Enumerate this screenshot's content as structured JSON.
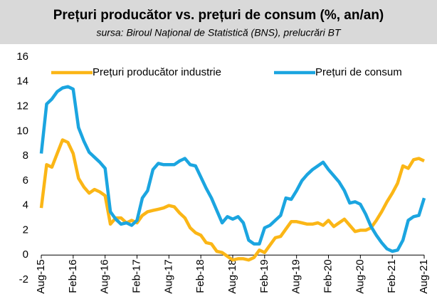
{
  "chart_data": {
    "type": "line",
    "title": "Prețuri producător vs. prețuri de consum (%, an/an)",
    "subtitle": "sursa: Biroul Național de Statistică (BNS), prelucrări BT",
    "categories": [
      "Aug-15",
      null,
      null,
      null,
      null,
      null,
      "Feb-16",
      null,
      null,
      null,
      null,
      null,
      "Aug-16",
      null,
      null,
      null,
      null,
      null,
      "Feb-17",
      null,
      null,
      null,
      null,
      null,
      "Aug-17",
      null,
      null,
      null,
      null,
      null,
      "Feb-18",
      null,
      null,
      null,
      null,
      null,
      "Aug-18",
      null,
      null,
      null,
      null,
      null,
      "Feb-19",
      null,
      null,
      null,
      null,
      null,
      "Aug-19",
      null,
      null,
      null,
      null,
      null,
      "Feb-20",
      null,
      null,
      null,
      null,
      null,
      "Aug-20",
      null,
      null,
      null,
      null,
      null,
      "Feb-21",
      null,
      null,
      null,
      null,
      null,
      "Aug-21"
    ],
    "series": [
      {
        "name": "Prețuri producător industrie",
        "color": "#fbb616",
        "values": [
          3.8,
          7.3,
          7.1,
          8.2,
          9.3,
          9.1,
          8.2,
          6.2,
          5.5,
          5.0,
          5.3,
          5.1,
          4.8,
          2.5,
          3.0,
          3.0,
          2.6,
          2.8,
          2.6,
          3.2,
          3.5,
          3.6,
          3.7,
          3.8,
          4.0,
          3.9,
          3.4,
          3.0,
          2.2,
          1.8,
          1.6,
          1.0,
          0.9,
          0.3,
          0.2,
          -0.1,
          -0.4,
          -0.3,
          -0.3,
          -0.4,
          -0.2,
          0.4,
          0.2,
          0.8,
          1.4,
          1.5,
          2.1,
          2.7,
          2.7,
          2.6,
          2.5,
          2.5,
          2.6,
          2.4,
          2.8,
          2.3,
          2.6,
          2.9,
          2.4,
          1.9,
          2.0,
          2.0,
          2.2,
          2.8,
          3.5,
          4.3,
          5.0,
          5.8,
          7.2,
          7.0,
          7.7,
          7.8,
          7.6
        ]
      },
      {
        "name": "Prețuri de consum",
        "color": "#1ba5e0",
        "values": [
          8.2,
          12.2,
          12.6,
          13.2,
          13.5,
          13.6,
          13.4,
          10.3,
          9.2,
          8.3,
          7.9,
          7.5,
          7.0,
          3.5,
          2.9,
          2.5,
          2.6,
          2.4,
          2.8,
          4.6,
          5.2,
          6.9,
          7.4,
          7.3,
          7.3,
          7.3,
          7.6,
          7.8,
          7.3,
          7.2,
          6.3,
          5.4,
          4.6,
          3.6,
          2.6,
          3.1,
          2.9,
          3.1,
          2.6,
          1.2,
          0.9,
          0.9,
          2.2,
          2.4,
          2.8,
          3.2,
          4.6,
          4.5,
          5.2,
          6.0,
          6.5,
          6.9,
          7.2,
          7.5,
          6.9,
          6.4,
          5.9,
          5.2,
          4.2,
          4.3,
          4.1,
          3.3,
          2.3,
          1.6,
          1.0,
          0.5,
          0.3,
          0.4,
          1.2,
          2.8,
          3.1,
          3.2,
          4.6
        ]
      }
    ],
    "ylim": [
      -2,
      16
    ],
    "yticks": [
      -2,
      0,
      2,
      4,
      6,
      8,
      10,
      12,
      14,
      16
    ],
    "grid": false,
    "legend": "top"
  }
}
